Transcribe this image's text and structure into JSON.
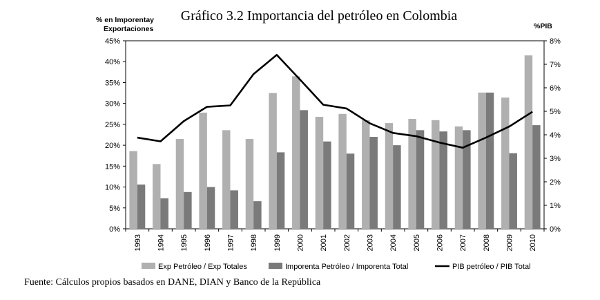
{
  "chart_data": {
    "type": "bar+line",
    "title": "Gráfico 3.2 Importancia del petróleo en Colombia",
    "ylabel_left_line1": "% en Imporentay",
    "ylabel_left_line2": "Exportaciones",
    "ylabel_right": "%PIB",
    "categories": [
      "1993",
      "1994",
      "1995",
      "1996",
      "1997",
      "1998",
      "1999",
      "2000",
      "2001",
      "2002",
      "2003",
      "2004",
      "2005",
      "2006",
      "2007",
      "2008",
      "2009",
      "2010"
    ],
    "ylim_left": [
      0,
      45
    ],
    "ylim_right": [
      0,
      8
    ],
    "yticks_left": [
      "0%",
      "5%",
      "10%",
      "15%",
      "20%",
      "25%",
      "30%",
      "35%",
      "40%",
      "45%"
    ],
    "yticks_right": [
      "0%",
      "1%",
      "2%",
      "3%",
      "4%",
      "5%",
      "6%",
      "7%",
      "8%"
    ],
    "series": [
      {
        "name": "Exp Petróleo / Exp Totales",
        "kind": "bar",
        "axis": "left",
        "color": "#b0b0b0",
        "values": [
          18.6,
          15.5,
          21.5,
          27.8,
          23.6,
          21.5,
          32.5,
          36.5,
          26.8,
          27.5,
          26.0,
          25.3,
          26.3,
          26.0,
          24.5,
          32.6,
          31.4,
          41.5
        ]
      },
      {
        "name": "Imporenta Petróleo / Imporenta Total",
        "kind": "bar",
        "axis": "left",
        "color": "#7a7a7a",
        "values": [
          10.6,
          7.3,
          8.8,
          10.0,
          9.2,
          6.6,
          18.3,
          28.4,
          20.9,
          18.0,
          22.0,
          20.0,
          23.6,
          23.3,
          23.6,
          32.6,
          18.1,
          24.8
        ]
      },
      {
        "name": "PIB petróleo / PIB Total",
        "kind": "line",
        "axis": "right",
        "color": "#000000",
        "values": [
          3.88,
          3.72,
          4.58,
          5.19,
          5.25,
          6.58,
          7.4,
          6.35,
          5.28,
          5.12,
          4.49,
          4.08,
          3.94,
          3.67,
          3.45,
          3.88,
          4.35,
          4.98
        ]
      }
    ],
    "legend_position": "bottom",
    "grid": false
  },
  "source": "Fuente: Cálculos propios basados en DANE, DIAN y Banco de la República"
}
